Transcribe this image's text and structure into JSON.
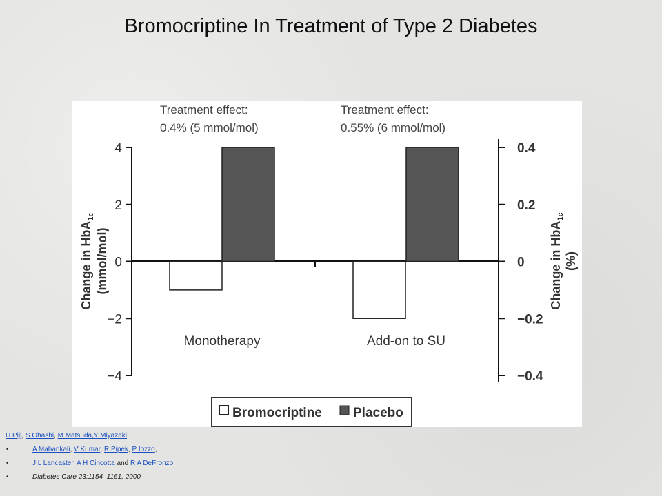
{
  "slide_title": "Bromocriptine In Treatment of Type 2 Diabetes",
  "chart_data": {
    "type": "bar",
    "categories": [
      "Monotherapy",
      "Add-on to SU"
    ],
    "series": [
      {
        "name": "Bromocriptine",
        "values": [
          -1,
          -2
        ],
        "color": "#ffffff"
      },
      {
        "name": "Placebo",
        "values": [
          4,
          4
        ],
        "color": "#555555"
      }
    ],
    "ylabel_left": "Change in HbA1c (mmol/mol)",
    "ylabel_right": "Change in HbA1c (%)",
    "ylim_left": [
      -4,
      4
    ],
    "ylim_right": [
      -0.4,
      0.4
    ],
    "yticks_left": [
      "4",
      "2",
      "0",
      "−2",
      "−4"
    ],
    "yticks_right": [
      "0.4",
      "0.2",
      "0",
      "−0.2",
      "−0.4"
    ],
    "annotations": [
      {
        "line1": "Treatment effect:",
        "line2": "0.4% (5 mmol/mol)"
      },
      {
        "line1": "Treatment effect:",
        "line2": "0.55% (6 mmol/mol)"
      }
    ],
    "legend_position": "bottom",
    "grid": false
  },
  "references": {
    "line1": [
      {
        "text": "H Pijl",
        "link": true
      },
      {
        "text": ", ",
        "link": false
      },
      {
        "text": "S Ohashi",
        "link": true
      },
      {
        "text": ", ",
        "link": false
      },
      {
        "text": "M Matsuda,Y Miyazaki",
        "link": true
      },
      {
        "text": ",",
        "link": false
      }
    ],
    "line2": [
      {
        "text": "A Mahankali",
        "link": true
      },
      {
        "text": ", ",
        "link": false
      },
      {
        "text": "V Kumar",
        "link": true
      },
      {
        "text": ", ",
        "link": false
      },
      {
        "text": "R Pipek",
        "link": true
      },
      {
        "text": ", ",
        "link": false
      },
      {
        "text": "P Iozzo",
        "link": true
      },
      {
        "text": ",",
        "link": false
      }
    ],
    "line3": [
      {
        "text": "J L Lancaster",
        "link": true
      },
      {
        "text": ", ",
        "link": false
      },
      {
        "text": "A H Cincotta",
        "link": true
      },
      {
        "text": " and ",
        "link": false
      },
      {
        "text": "R A DeFronzo",
        "link": true
      }
    ],
    "journal": "Diabetes Care 23:1154–1161, 2000"
  }
}
